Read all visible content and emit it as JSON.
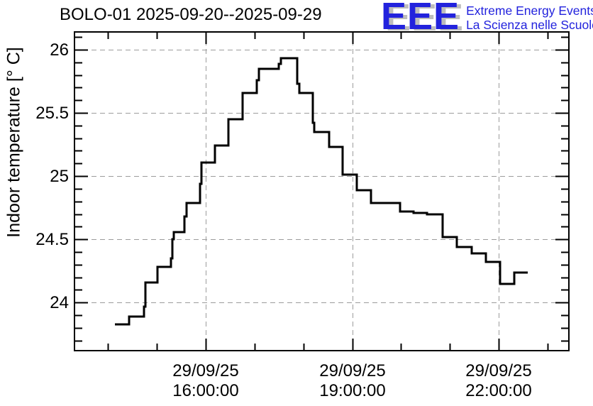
{
  "header": {
    "title": "BOLO-01 2025-09-20--2025-09-29",
    "logo": {
      "acronym": "EEE",
      "tagline_line1": "Extreme Energy Events",
      "tagline_line2": "La Scienza nelle Scuole",
      "blue": "#2222dd",
      "shadow_gray": "#bdbdbd"
    }
  },
  "chart_data": {
    "type": "line",
    "step_mode": "after",
    "title": "BOLO-01 2025-09-20--2025-09-29",
    "xlabel": "",
    "ylabel": "Indoor temperature [° C]",
    "grid": {
      "show": true,
      "style": "dashed",
      "on": "major",
      "color": "#9c9c9c"
    },
    "frame_color": "#000000",
    "background": "#ffffff",
    "x_axis": {
      "lim_hours": [
        13.31,
        23.44
      ],
      "major_ticks": [
        {
          "hours": 16,
          "date": "29/09/25",
          "time": "16:00:00"
        },
        {
          "hours": 19,
          "date": "29/09/25",
          "time": "19:00:00"
        },
        {
          "hours": 22,
          "date": "29/09/25",
          "time": "22:00:00"
        }
      ],
      "minor_tick_every_hours": 1
    },
    "y_axis": {
      "lim": [
        23.62,
        26.14
      ],
      "major_ticks": [
        24,
        24.5,
        25,
        25.5,
        26
      ],
      "minor_tick_step": 0.1
    },
    "series": [
      {
        "name": "Indoor temperature",
        "color": "#000000",
        "line_width": 3,
        "end_time": "22:36",
        "points": [
          [
            "14:08",
            23.83
          ],
          [
            "14:26",
            23.89
          ],
          [
            "14:44",
            23.97
          ],
          [
            "14:46",
            24.16
          ],
          [
            "15:01",
            24.28
          ],
          [
            "15:17",
            24.35
          ],
          [
            "15:19",
            24.5
          ],
          [
            "15:21",
            24.56
          ],
          [
            "15:34",
            24.68
          ],
          [
            "15:36",
            24.79
          ],
          [
            "15:53",
            24.94
          ],
          [
            "15:55",
            25.11
          ],
          [
            "16:11",
            25.24
          ],
          [
            "16:28",
            25.45
          ],
          [
            "16:45",
            25.66
          ],
          [
            "17:03",
            25.76
          ],
          [
            "17:05",
            25.85
          ],
          [
            "17:30",
            25.89
          ],
          [
            "17:32",
            25.93
          ],
          [
            "17:52",
            25.73
          ],
          [
            "17:55",
            25.66
          ],
          [
            "18:12",
            25.42
          ],
          [
            "18:13",
            25.35
          ],
          [
            "18:32",
            25.23
          ],
          [
            "18:48",
            25.01
          ],
          [
            "19:06",
            24.89
          ],
          [
            "19:23",
            24.79
          ],
          [
            "19:59",
            24.72
          ],
          [
            "20:15",
            24.71
          ],
          [
            "20:32",
            24.7
          ],
          [
            "20:51",
            24.52
          ],
          [
            "21:09",
            24.44
          ],
          [
            "21:27",
            24.39
          ],
          [
            "21:44",
            24.32
          ],
          [
            "22:02",
            24.15
          ],
          [
            "22:19",
            24.24
          ]
        ]
      }
    ]
  }
}
